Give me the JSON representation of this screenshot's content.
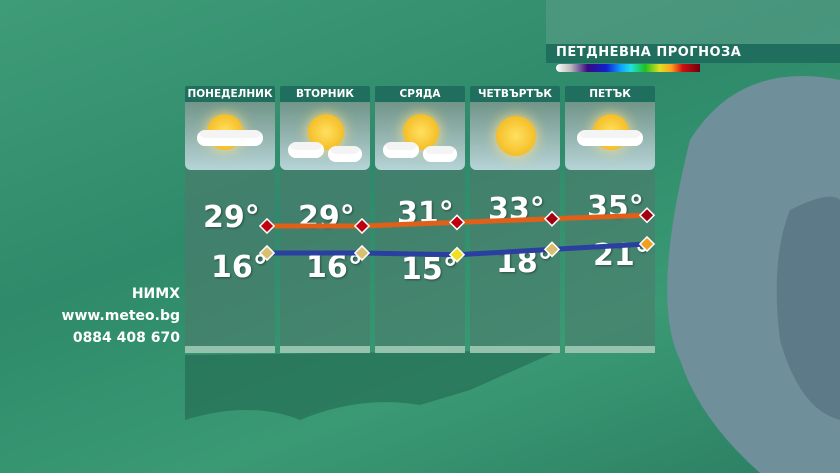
{
  "header": {
    "title": "ПЕТДНЕВНА ПРОГНОЗА"
  },
  "info": {
    "org": "НИМХ",
    "site": "www.meteo.bg",
    "phone": "0884 408 670"
  },
  "days": [
    {
      "name": "ПОНЕДЕЛНИК",
      "icon": "sun-cloud-rain-icon",
      "max": "29°",
      "min": "16°"
    },
    {
      "name": "ВТОРНИК",
      "icon": "sun-clouds-icon",
      "max": "29°",
      "min": "16°"
    },
    {
      "name": "СРЯДА",
      "icon": "sun-clouds-icon",
      "max": "31°",
      "min": "15°"
    },
    {
      "name": "ЧЕТВЪРТЪК",
      "icon": "sun-icon",
      "max": "33°",
      "min": "18°"
    },
    {
      "name": "ПЕТЪК",
      "icon": "sun-cloud-icon",
      "max": "35°",
      "min": "21°"
    }
  ],
  "chart_data": {
    "type": "line",
    "categories": [
      "ПОНЕДЕЛНИК",
      "ВТОРНИК",
      "СРЯДА",
      "ЧЕТВЪРТЪК",
      "ПЕТЪК"
    ],
    "series": [
      {
        "values": [
          29,
          29,
          31,
          33,
          35
        ],
        "color": "#e0601a"
      },
      {
        "values": [
          16,
          16,
          15,
          18,
          21
        ],
        "color": "#2a3fa0"
      }
    ]
  }
}
